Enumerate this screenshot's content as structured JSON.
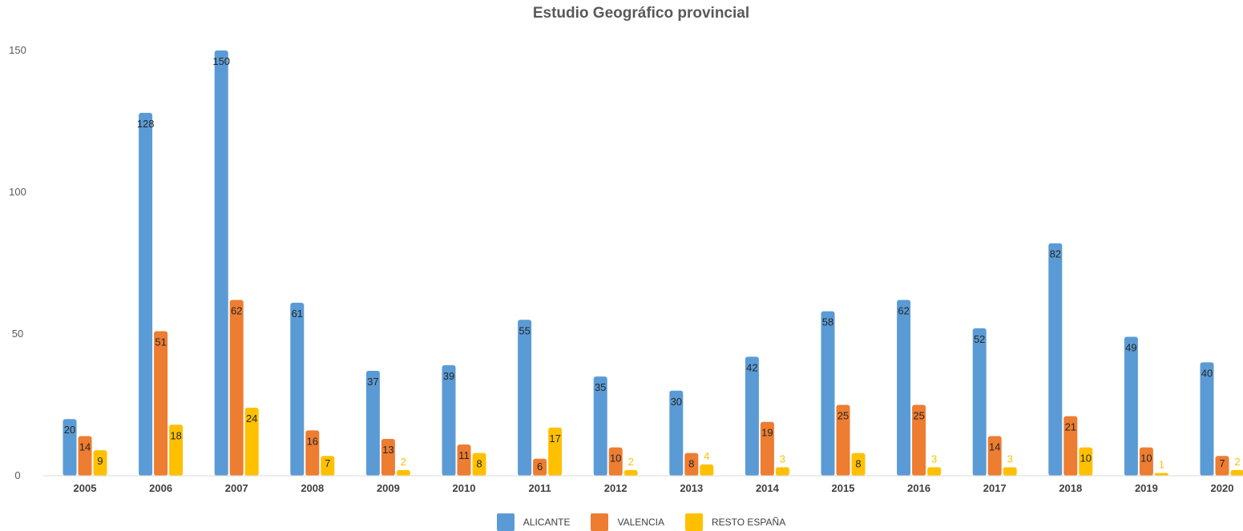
{
  "chart_data": {
    "type": "bar",
    "title": "Estudio Geográfico provincial",
    "xlabel": "",
    "ylabel": "",
    "ylim": [
      0,
      150
    ],
    "yticks": [
      0,
      50,
      100,
      150
    ],
    "grid": false,
    "legend_position": "bottom",
    "categories": [
      "2005",
      "2006",
      "2007",
      "2008",
      "2009",
      "2010",
      "2011",
      "2012",
      "2013",
      "2014",
      "2015",
      "2016",
      "2017",
      "2018",
      "2019",
      "2020"
    ],
    "series": [
      {
        "name": "ALICANTE",
        "color": "#5b9bd5",
        "values": [
          20,
          128,
          150,
          61,
          37,
          39,
          55,
          35,
          30,
          42,
          58,
          62,
          52,
          82,
          49,
          40
        ]
      },
      {
        "name": "VALENCIA",
        "color": "#ed7d31",
        "values": [
          14,
          51,
          62,
          16,
          13,
          11,
          6,
          10,
          8,
          19,
          25,
          25,
          14,
          21,
          10,
          7
        ]
      },
      {
        "name": "RESTO ESPAÑA",
        "color": "#ffc000",
        "values": [
          9,
          18,
          24,
          7,
          2,
          8,
          17,
          2,
          4,
          3,
          8,
          3,
          3,
          10,
          1,
          2
        ]
      }
    ]
  }
}
